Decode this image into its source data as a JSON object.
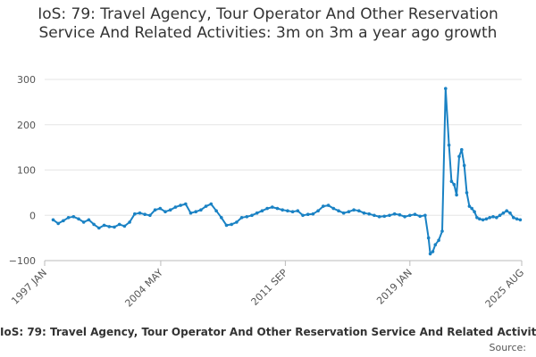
{
  "chart_data": {
    "type": "line",
    "title": "IoS: 79: Travel Agency, Tour Operator And Other Reservation Service And Related Activities: 3m on 3m a year ago growth",
    "xlabel": "",
    "ylabel": "",
    "ylim": [
      -100,
      300
    ],
    "yticks": [
      -100,
      0,
      100,
      200,
      300
    ],
    "ytick_labels": [
      "−100",
      "0",
      "100",
      "200",
      "300"
    ],
    "xlim": [
      1997.5,
      2025.583
    ],
    "xticks": [
      1997.0,
      2004.333,
      2011.667,
      2019.0,
      2025.583
    ],
    "xtick_labels": [
      "1997 JAN",
      "2004 MAY",
      "2011 SEP",
      "2019 JAN",
      "2025 AUG"
    ],
    "grid": true,
    "color": "#1a82c4",
    "series": [
      {
        "name": "IoS: 79: Travel Agency, Tour Operator And Other Reservation Service And Related Activities: 3m on 3m a year ago growth",
        "x": [
          1998.0,
          1998.3,
          1998.6,
          1998.9,
          1999.2,
          1999.5,
          1999.8,
          2000.1,
          2000.4,
          2000.7,
          2001.0,
          2001.3,
          2001.6,
          2001.9,
          2002.2,
          2002.5,
          2002.8,
          2003.1,
          2003.4,
          2003.7,
          2004.0,
          2004.3,
          2004.6,
          2004.9,
          2005.2,
          2005.5,
          2005.8,
          2006.1,
          2006.4,
          2006.7,
          2007.0,
          2007.3,
          2007.6,
          2007.9,
          2008.2,
          2008.5,
          2008.8,
          2009.1,
          2009.4,
          2009.7,
          2010.0,
          2010.3,
          2010.6,
          2010.9,
          2011.2,
          2011.5,
          2011.8,
          2012.1,
          2012.4,
          2012.7,
          2013.0,
          2013.3,
          2013.6,
          2013.9,
          2014.2,
          2014.5,
          2014.8,
          2015.1,
          2015.4,
          2015.7,
          2016.0,
          2016.3,
          2016.6,
          2016.9,
          2017.2,
          2017.5,
          2017.8,
          2018.1,
          2018.4,
          2018.7,
          2019.0,
          2019.3,
          2019.6,
          2019.9,
          2020.1,
          2020.2,
          2020.35,
          2020.5,
          2020.7,
          2020.9,
          2021.1,
          2021.3,
          2021.45,
          2021.6,
          2021.75,
          2021.9,
          2022.05,
          2022.2,
          2022.35,
          2022.5,
          2022.65,
          2022.8,
          2022.95,
          2023.1,
          2023.3,
          2023.5,
          2023.7,
          2023.9,
          2024.1,
          2024.3,
          2024.5,
          2024.7,
          2024.9,
          2025.1,
          2025.3,
          2025.5
        ],
        "y": [
          -10,
          -18,
          -12,
          -5,
          -3,
          -8,
          -15,
          -10,
          -20,
          -28,
          -22,
          -25,
          -26,
          -20,
          -24,
          -15,
          3,
          5,
          2,
          0,
          12,
          15,
          8,
          12,
          18,
          22,
          25,
          5,
          8,
          12,
          20,
          25,
          10,
          -5,
          -22,
          -20,
          -15,
          -5,
          -3,
          0,
          5,
          10,
          15,
          18,
          15,
          12,
          10,
          8,
          10,
          0,
          2,
          3,
          10,
          20,
          22,
          15,
          10,
          5,
          8,
          12,
          10,
          5,
          3,
          0,
          -3,
          -2,
          0,
          3,
          1,
          -3,
          0,
          2,
          -2,
          0,
          -50,
          -85,
          -80,
          -65,
          -55,
          -35,
          280,
          155,
          75,
          68,
          45,
          130,
          145,
          110,
          50,
          20,
          15,
          8,
          -5,
          -8,
          -10,
          -8,
          -5,
          -3,
          -5,
          0,
          5,
          10,
          5,
          -5,
          -8,
          -10
        ]
      }
    ],
    "legend_label": "IoS: 79: Travel Agency, Tour Operator And Other Reservation Service And Related Activities: 3m on 3m a year ago growth",
    "source_label": "Source:"
  }
}
